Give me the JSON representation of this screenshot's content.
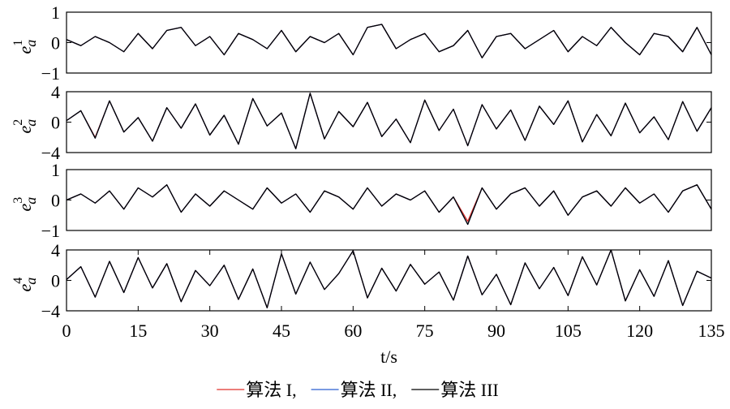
{
  "chart_data": [
    {
      "type": "line",
      "ylabel": "e",
      "ylabel_sub": "a",
      "ylabel_sup": "1",
      "x": [
        0,
        3,
        6,
        9,
        12,
        15,
        18,
        21,
        24,
        27,
        30,
        33,
        36,
        39,
        42,
        45,
        48,
        51,
        54,
        57,
        60,
        63,
        66,
        69,
        72,
        75,
        78,
        81,
        84,
        87,
        90,
        93,
        96,
        99,
        102,
        105,
        108,
        111,
        114,
        117,
        120,
        123,
        126,
        129,
        132,
        135
      ],
      "xlim": [
        0,
        135
      ],
      "ylim": [
        -1,
        1
      ],
      "yticks": [
        {
          "value": -1,
          "label": "−1"
        },
        0,
        1
      ],
      "series": [
        {
          "color": "#e0302a",
          "values": [
            0.1,
            -0.1,
            0.2,
            0.0,
            -0.3,
            0.3,
            -0.2,
            0.4,
            0.5,
            -0.1,
            0.2,
            -0.4,
            0.3,
            0.1,
            -0.2,
            0.4,
            -0.3,
            0.2,
            0.0,
            0.3,
            -0.4,
            0.5,
            0.6,
            -0.2,
            0.1,
            0.3,
            -0.3,
            -0.1,
            0.4,
            -0.5,
            0.2,
            0.3,
            -0.2,
            0.1,
            0.4,
            -0.3,
            0.2,
            -0.1,
            0.5,
            0.0,
            -0.4,
            0.3,
            0.2,
            -0.3,
            0.5,
            -0.4
          ]
        },
        {
          "color": "#2a5fd0",
          "values": [
            0.1,
            -0.1,
            0.2,
            0.0,
            -0.3,
            0.3,
            -0.2,
            0.4,
            0.5,
            -0.1,
            0.2,
            -0.4,
            0.3,
            0.1,
            -0.2,
            0.4,
            -0.3,
            0.2,
            0.0,
            0.3,
            -0.4,
            0.5,
            0.6,
            -0.2,
            0.1,
            0.3,
            -0.3,
            -0.1,
            0.4,
            -0.5,
            0.2,
            0.3,
            -0.2,
            0.1,
            0.4,
            -0.3,
            0.2,
            -0.1,
            0.5,
            0.0,
            -0.4,
            0.3,
            0.2,
            -0.3,
            0.5,
            -0.4
          ]
        },
        {
          "color": "#000000",
          "values": [
            0.1,
            -0.1,
            0.2,
            0.0,
            -0.3,
            0.3,
            -0.2,
            0.4,
            0.5,
            -0.1,
            0.2,
            -0.4,
            0.3,
            0.1,
            -0.2,
            0.4,
            -0.3,
            0.2,
            0.0,
            0.3,
            -0.4,
            0.5,
            0.6,
            -0.2,
            0.1,
            0.3,
            -0.3,
            -0.1,
            0.4,
            -0.5,
            0.2,
            0.3,
            -0.2,
            0.1,
            0.4,
            -0.3,
            0.2,
            -0.1,
            0.5,
            0.0,
            -0.4,
            0.3,
            0.2,
            -0.3,
            0.5,
            -0.4
          ]
        }
      ]
    },
    {
      "type": "line",
      "ylabel": "e",
      "ylabel_sub": "a",
      "ylabel_sup": "2",
      "x": [
        0,
        3,
        6,
        9,
        12,
        15,
        18,
        21,
        24,
        27,
        30,
        33,
        36,
        39,
        42,
        45,
        48,
        51,
        54,
        57,
        60,
        63,
        66,
        69,
        72,
        75,
        78,
        81,
        84,
        87,
        90,
        93,
        96,
        99,
        102,
        105,
        108,
        111,
        114,
        117,
        120,
        123,
        126,
        129,
        132,
        135
      ],
      "xlim": [
        0,
        135
      ],
      "ylim": [
        -4,
        4
      ],
      "yticks": [
        {
          "value": -4,
          "label": "−4"
        },
        0,
        4
      ],
      "series": [
        {
          "color": "#e0302a",
          "values": [
            0.2,
            1.5,
            -2.0,
            2.8,
            -1.3,
            0.6,
            -2.5,
            1.9,
            -0.8,
            2.4,
            -1.7,
            0.9,
            -2.9,
            3.1,
            -0.5,
            1.2,
            -3.5,
            3.8,
            -2.2,
            1.4,
            -0.6,
            2.6,
            -1.9,
            0.4,
            -2.7,
            2.9,
            -1.1,
            1.7,
            -3.1,
            2.3,
            -0.9,
            1.6,
            -2.4,
            2.1,
            -0.3,
            2.8,
            -2.6,
            1.0,
            -1.8,
            2.5,
            -1.4,
            0.7,
            -2.3,
            2.7,
            -1.2,
            1.9
          ]
        },
        {
          "color": "#2a5fd0",
          "values": [
            0.2,
            1.5,
            -2.1,
            2.8,
            -1.3,
            0.6,
            -2.5,
            1.9,
            -0.8,
            2.4,
            -1.7,
            0.9,
            -2.9,
            3.1,
            -0.5,
            1.2,
            -3.5,
            3.8,
            -2.2,
            1.4,
            -0.6,
            2.6,
            -1.9,
            0.4,
            -2.7,
            2.9,
            -1.1,
            1.7,
            -3.1,
            2.3,
            -0.9,
            1.6,
            -2.4,
            2.1,
            -0.3,
            2.8,
            -2.6,
            1.0,
            -1.8,
            2.5,
            -1.4,
            0.7,
            -2.3,
            2.7,
            -1.2,
            1.9
          ]
        },
        {
          "color": "#000000",
          "values": [
            0.2,
            1.5,
            -2.1,
            2.8,
            -1.3,
            0.6,
            -2.5,
            1.9,
            -0.8,
            2.4,
            -1.7,
            0.9,
            -2.9,
            3.1,
            -0.5,
            1.2,
            -3.5,
            3.8,
            -2.2,
            1.4,
            -0.6,
            2.6,
            -1.9,
            0.4,
            -2.7,
            2.9,
            -1.1,
            1.7,
            -3.1,
            2.3,
            -0.9,
            1.6,
            -2.4,
            2.1,
            -0.3,
            2.8,
            -2.6,
            1.0,
            -1.8,
            2.5,
            -1.4,
            0.7,
            -2.3,
            2.7,
            -1.2,
            1.9
          ]
        }
      ]
    },
    {
      "type": "line",
      "ylabel": "e",
      "ylabel_sub": "a",
      "ylabel_sup": "3",
      "x": [
        0,
        3,
        6,
        9,
        12,
        15,
        18,
        21,
        24,
        27,
        30,
        33,
        36,
        39,
        42,
        45,
        48,
        51,
        54,
        57,
        60,
        63,
        66,
        69,
        72,
        75,
        78,
        81,
        84,
        87,
        90,
        93,
        96,
        99,
        102,
        105,
        108,
        111,
        114,
        117,
        120,
        123,
        126,
        129,
        132,
        135
      ],
      "xlim": [
        0,
        135
      ],
      "ylim": [
        -1,
        1
      ],
      "yticks": [
        {
          "value": -1,
          "label": "−1"
        },
        0,
        1
      ],
      "series": [
        {
          "color": "#e0302a",
          "values": [
            0.0,
            0.2,
            -0.1,
            0.3,
            -0.3,
            0.4,
            0.1,
            0.5,
            -0.4,
            0.2,
            -0.2,
            0.3,
            0.0,
            -0.3,
            0.4,
            -0.1,
            0.2,
            -0.4,
            0.3,
            0.1,
            -0.3,
            0.4,
            -0.2,
            0.2,
            0.0,
            0.3,
            -0.4,
            0.1,
            -0.7,
            0.4,
            -0.3,
            0.2,
            0.4,
            -0.2,
            0.3,
            -0.5,
            0.1,
            0.3,
            -0.2,
            0.4,
            -0.1,
            0.2,
            -0.4,
            0.3,
            0.5,
            -0.3
          ]
        },
        {
          "color": "#2a5fd0",
          "values": [
            0.0,
            0.2,
            -0.1,
            0.3,
            -0.3,
            0.4,
            0.1,
            0.5,
            -0.4,
            0.2,
            -0.2,
            0.3,
            0.0,
            -0.3,
            0.4,
            -0.1,
            0.2,
            -0.4,
            0.3,
            0.1,
            -0.3,
            0.4,
            -0.2,
            0.2,
            0.0,
            0.3,
            -0.4,
            0.1,
            -0.8,
            0.4,
            -0.3,
            0.2,
            0.4,
            -0.2,
            0.3,
            -0.5,
            0.1,
            0.3,
            -0.2,
            0.4,
            -0.1,
            0.2,
            -0.4,
            0.3,
            0.5,
            -0.3
          ]
        },
        {
          "color": "#000000",
          "values": [
            0.0,
            0.2,
            -0.1,
            0.3,
            -0.3,
            0.4,
            0.1,
            0.5,
            -0.4,
            0.2,
            -0.2,
            0.3,
            0.0,
            -0.3,
            0.4,
            -0.1,
            0.2,
            -0.4,
            0.3,
            0.1,
            -0.3,
            0.4,
            -0.2,
            0.2,
            0.0,
            0.3,
            -0.4,
            0.1,
            -0.8,
            0.4,
            -0.3,
            0.2,
            0.4,
            -0.2,
            0.3,
            -0.5,
            0.1,
            0.3,
            -0.2,
            0.4,
            -0.1,
            0.2,
            -0.4,
            0.3,
            0.5,
            -0.3
          ]
        }
      ]
    },
    {
      "type": "line",
      "ylabel": "e",
      "ylabel_sub": "a",
      "ylabel_sup": "4",
      "xlabel": "t/s",
      "legend": "bottom",
      "x": [
        0,
        3,
        6,
        9,
        12,
        15,
        18,
        21,
        24,
        27,
        30,
        33,
        36,
        39,
        42,
        45,
        48,
        51,
        54,
        57,
        60,
        63,
        66,
        69,
        72,
        75,
        78,
        81,
        84,
        87,
        90,
        93,
        96,
        99,
        102,
        105,
        108,
        111,
        114,
        117,
        120,
        123,
        126,
        129,
        132,
        135
      ],
      "xlim": [
        0,
        135
      ],
      "xticks": [
        0,
        15,
        30,
        45,
        60,
        75,
        90,
        105,
        120,
        135
      ],
      "ylim": [
        -4,
        4
      ],
      "yticks": [
        {
          "value": -4,
          "label": "−4"
        },
        0,
        4
      ],
      "series": [
        {
          "name": "算法 I,",
          "color": "#e0302a",
          "values": [
            0.1,
            1.8,
            -2.2,
            2.5,
            -1.6,
            3.0,
            -1.0,
            2.2,
            -2.8,
            1.3,
            -0.7,
            2.0,
            -2.5,
            1.5,
            -3.6,
            3.5,
            -1.8,
            2.4,
            -1.2,
            0.9,
            3.9,
            -2.3,
            1.6,
            -1.4,
            2.1,
            -0.5,
            1.1,
            -2.6,
            3.2,
            -1.9,
            0.8,
            -3.2,
            2.3,
            -1.1,
            1.7,
            -2.0,
            3.1,
            -0.6,
            4.0,
            -2.7,
            1.4,
            -2.1,
            2.6,
            -3.3,
            1.2,
            0.3
          ]
        },
        {
          "name": "算法 II,",
          "color": "#2a5fd0",
          "values": [
            0.1,
            1.8,
            -2.2,
            2.5,
            -1.6,
            3.0,
            -1.0,
            2.2,
            -2.8,
            1.3,
            -0.7,
            2.0,
            -2.5,
            1.5,
            -3.6,
            3.5,
            -1.8,
            2.4,
            -1.2,
            0.9,
            3.9,
            -2.3,
            1.6,
            -1.4,
            2.1,
            -0.5,
            1.1,
            -2.6,
            3.2,
            -1.9,
            0.8,
            -3.2,
            2.3,
            -1.1,
            1.7,
            -2.0,
            3.1,
            -0.6,
            4.0,
            -2.7,
            1.4,
            -2.1,
            2.6,
            -3.3,
            1.2,
            0.3
          ]
        },
        {
          "name": "算法 III",
          "color": "#000000",
          "values": [
            0.1,
            1.8,
            -2.2,
            2.5,
            -1.6,
            3.0,
            -1.0,
            2.2,
            -2.8,
            1.3,
            -0.7,
            2.0,
            -2.5,
            1.5,
            -3.6,
            3.5,
            -1.8,
            2.4,
            -1.2,
            0.9,
            3.9,
            -2.3,
            1.6,
            -1.4,
            2.1,
            -0.5,
            1.1,
            -2.6,
            3.2,
            -1.9,
            0.8,
            -3.2,
            2.3,
            -1.1,
            1.7,
            -2.0,
            3.1,
            -0.6,
            4.0,
            -2.7,
            1.4,
            -2.1,
            2.6,
            -3.3,
            1.2,
            0.3
          ]
        }
      ]
    }
  ]
}
